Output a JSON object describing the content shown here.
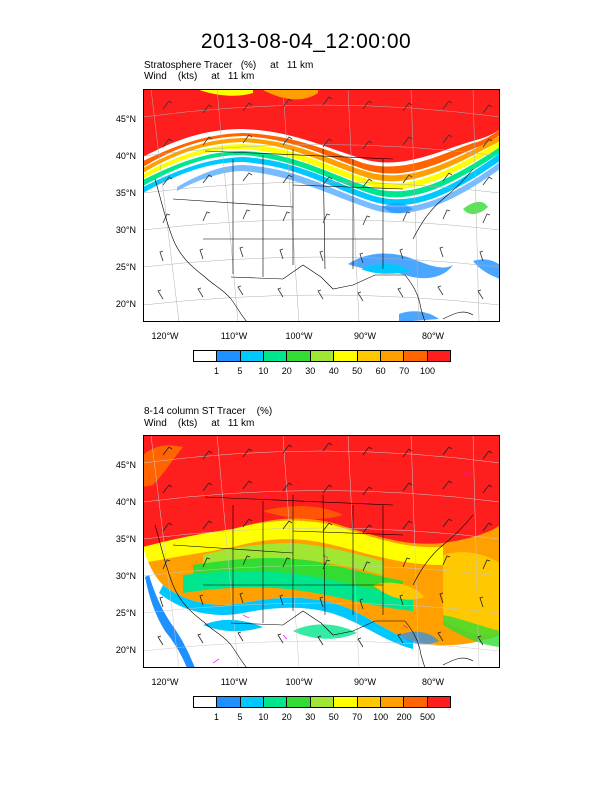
{
  "title": "2013-08-04_12:00:00",
  "panels": [
    {
      "subtitle_line1": "Stratosphere Tracer   (%)     at   11 km",
      "subtitle_line2": "Wind    (kts)     at   11 km",
      "lat_labels": [
        "45°N",
        "40°N",
        "35°N",
        "30°N",
        "25°N",
        "20°N"
      ],
      "lon_labels": [
        "120°W",
        "110°W",
        "100°W",
        "90°W",
        "80°W"
      ],
      "colorbar": {
        "colors": [
          "#ffffff",
          "#1e90ff",
          "#00c8ff",
          "#00e68c",
          "#32dc32",
          "#a0e632",
          "#ffff00",
          "#ffc800",
          "#ffa000",
          "#ff6400",
          "#ff1e1e"
        ],
        "labels": [
          "1",
          "5",
          "10",
          "20",
          "30",
          "40",
          "50",
          "60",
          "70",
          "100"
        ]
      }
    },
    {
      "subtitle_line1": "8-14 column ST Tracer    (%)",
      "subtitle_line2": "Wind    (kts)     at   11 km",
      "lat_labels": [
        "45°N",
        "40°N",
        "35°N",
        "30°N",
        "25°N",
        "20°N"
      ],
      "lon_labels": [
        "120°W",
        "110°W",
        "100°W",
        "90°W",
        "80°W"
      ],
      "colorbar": {
        "colors": [
          "#ffffff",
          "#1e90ff",
          "#00c8ff",
          "#00e68c",
          "#32dc32",
          "#a0e632",
          "#ffff00",
          "#ffc800",
          "#ffa000",
          "#ff6400",
          "#ff1e1e"
        ],
        "labels": [
          "1",
          "5",
          "10",
          "20",
          "30",
          "50",
          "70",
          "100",
          "200",
          "500"
        ]
      }
    }
  ]
}
